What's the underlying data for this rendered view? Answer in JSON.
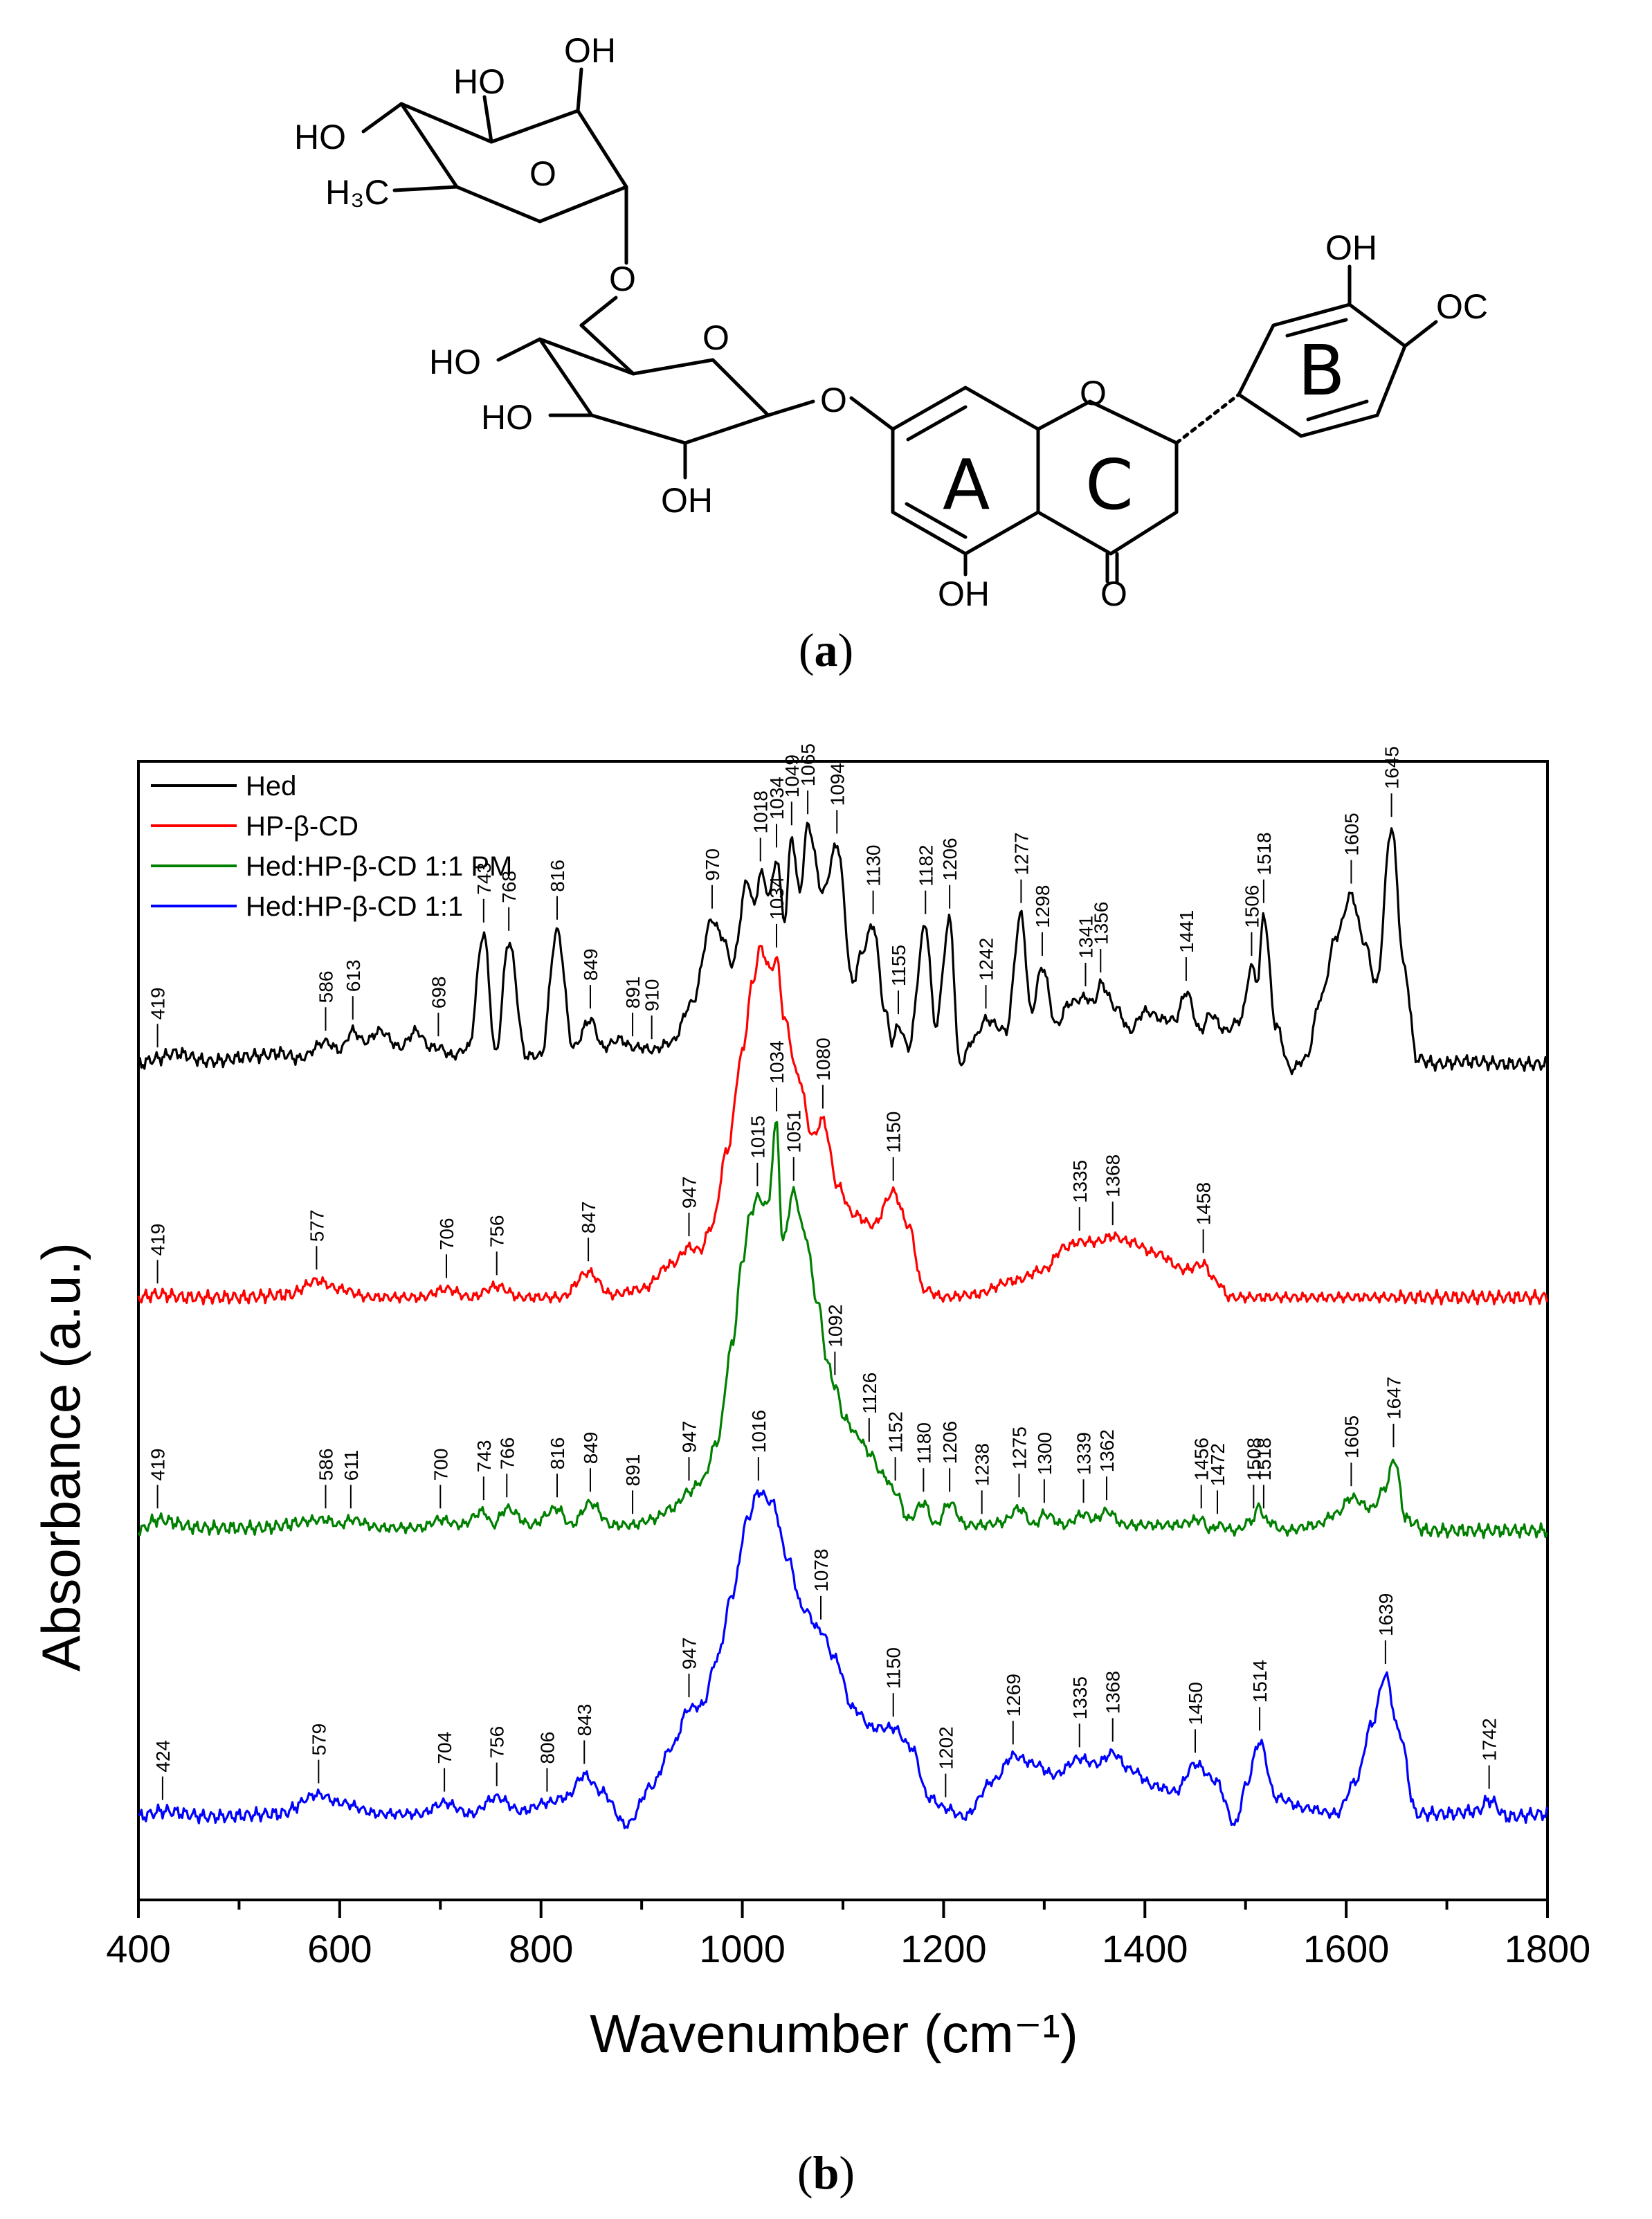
{
  "structure": {
    "atoms": {
      "oh_rha_top": "OH",
      "ho_rha_upper": "HO",
      "ho_rha_left": "HO",
      "ch3": "H₃C",
      "o_rha_ring": "O",
      "o_link": "O",
      "o_glc_ring": "O",
      "ho_glc_c6": "HO",
      "ho_glc_c4": "HO",
      "oh_glc_c2": "OH",
      "o_glycosidic": "O",
      "o_c_ring": "O",
      "oh_5": "OH",
      "o_carbonyl": "O",
      "oh_b3": "OH",
      "oc_b4": "OC"
    },
    "ring_labels": {
      "a": "A",
      "b": "B",
      "c": "C"
    }
  },
  "captions": {
    "a_label": "a",
    "b_label": "b"
  },
  "chart_data": {
    "type": "line",
    "xlabel": "Wavenumber (cm⁻¹)",
    "ylabel": "Absorbance (a.u.)",
    "xlim": [
      400,
      1800
    ],
    "x_ticks": [
      400,
      600,
      800,
      1000,
      1200,
      1400,
      1600,
      1800
    ],
    "legend": {
      "placement": "top-left"
    },
    "series": [
      {
        "name": "Hed",
        "color": "#000000",
        "baseline": 2.76,
        "x": [
          400,
          419,
          436,
          470,
          520,
          540,
          560,
          586,
          600,
          613,
          625,
          640,
          660,
          676,
          690,
          698,
          712,
          728,
          743,
          755,
          768,
          785,
          800,
          816,
          832,
          849,
          862,
          878,
          891,
          900,
          910,
          930,
          950,
          970,
          980,
          990,
          1005,
          1012,
          1018,
          1027,
          1034,
          1042,
          1049,
          1057,
          1065,
          1080,
          1094,
          1110,
          1117,
          1130,
          1142,
          1149,
          1155,
          1165,
          1182,
          1192,
          1206,
          1216,
          1230,
          1242,
          1262,
          1277,
          1287,
          1298,
          1312,
          1325,
          1341,
          1349,
          1356,
          1372,
          1385,
          1400,
          1420,
          1430,
          1441,
          1455,
          1465,
          1480,
          1495,
          1506,
          1512,
          1518,
          1530,
          1545,
          1560,
          1575,
          1590,
          1605,
          1618,
          1630,
          1645,
          1658,
          1670,
          1690,
          1720,
          1760,
          1800
        ],
        "y": [
          2.76,
          2.78,
          2.8,
          2.77,
          2.79,
          2.8,
          2.78,
          2.84,
          2.81,
          2.88,
          2.84,
          2.88,
          2.82,
          2.88,
          2.82,
          2.82,
          2.79,
          2.82,
          3.23,
          2.8,
          3.2,
          2.79,
          2.79,
          3.24,
          2.82,
          2.92,
          2.82,
          2.85,
          2.82,
          2.82,
          2.81,
          2.84,
          2.98,
          3.28,
          3.22,
          3.12,
          3.42,
          3.33,
          3.45,
          3.37,
          3.5,
          3.28,
          3.58,
          3.38,
          3.62,
          3.38,
          3.55,
          3.05,
          3.15,
          3.26,
          2.95,
          2.84,
          2.9,
          2.82,
          3.26,
          2.9,
          3.28,
          2.76,
          2.85,
          2.92,
          2.88,
          3.3,
          2.95,
          3.11,
          2.9,
          2.98,
          3.0,
          2.98,
          3.05,
          2.96,
          2.88,
          2.95,
          2.92,
          2.92,
          3.02,
          2.88,
          2.94,
          2.88,
          2.92,
          3.11,
          3.06,
          3.3,
          2.9,
          2.74,
          2.78,
          3.0,
          3.22,
          3.37,
          3.2,
          3.05,
          3.61,
          3.1,
          2.78,
          2.76,
          2.77,
          2.76,
          2.76
        ]
      },
      {
        "name": "HP-β-CD",
        "color": "#ff0000",
        "baseline": 1.92,
        "x": [
          400,
          419,
          450,
          500,
          550,
          577,
          600,
          630,
          680,
          706,
          730,
          756,
          780,
          820,
          847,
          870,
          900,
          930,
          947,
          958,
          970,
          985,
          1000,
          1010,
          1018,
          1028,
          1034,
          1042,
          1055,
          1070,
          1080,
          1095,
          1110,
          1130,
          1150,
          1165,
          1180,
          1200,
          1230,
          1270,
          1300,
          1320,
          1335,
          1352,
          1368,
          1385,
          1410,
          1440,
          1458,
          1470,
          1485,
          1500,
          1550,
          1600,
          1650,
          1700,
          1800
        ],
        "y": [
          1.92,
          1.93,
          1.92,
          1.92,
          1.93,
          1.98,
          1.95,
          1.92,
          1.92,
          1.95,
          1.92,
          1.96,
          1.92,
          1.92,
          2.01,
          1.93,
          1.95,
          2.04,
          2.1,
          2.09,
          2.18,
          2.45,
          2.8,
          3.05,
          3.18,
          3.1,
          3.14,
          2.92,
          2.72,
          2.5,
          2.56,
          2.32,
          2.22,
          2.18,
          2.3,
          2.18,
          1.95,
          1.92,
          1.93,
          1.98,
          2.02,
          2.1,
          2.12,
          2.12,
          2.14,
          2.12,
          2.08,
          2.02,
          2.04,
          1.98,
          1.92,
          1.92,
          1.92,
          1.92,
          1.92,
          1.92,
          1.92
        ]
      },
      {
        "name": "Hed:HP-β-CD 1:1 PM",
        "color": "#008000",
        "baseline": 1.08,
        "x": [
          400,
          419,
          460,
          520,
          586,
          600,
          611,
          640,
          680,
          700,
          720,
          743,
          752,
          766,
          790,
          816,
          830,
          849,
          870,
          891,
          910,
          930,
          947,
          960,
          975,
          990,
          1000,
          1008,
          1015,
          1025,
          1034,
          1040,
          1051,
          1062,
          1075,
          1085,
          1092,
          1102,
          1115,
          1126,
          1140,
          1152,
          1165,
          1180,
          1192,
          1206,
          1222,
          1238,
          1258,
          1275,
          1290,
          1300,
          1320,
          1339,
          1350,
          1362,
          1380,
          1400,
          1430,
          1456,
          1465,
          1472,
          1490,
          1508,
          1514,
          1518,
          1540,
          1570,
          1590,
          1605,
          1625,
          1640,
          1647,
          1660,
          1680,
          1720,
          1800
        ],
        "y": [
          1.08,
          1.12,
          1.09,
          1.09,
          1.12,
          1.1,
          1.12,
          1.09,
          1.09,
          1.12,
          1.1,
          1.15,
          1.1,
          1.16,
          1.1,
          1.16,
          1.1,
          1.18,
          1.1,
          1.1,
          1.12,
          1.16,
          1.22,
          1.26,
          1.4,
          1.75,
          2.05,
          2.22,
          2.28,
          2.25,
          2.55,
          2.12,
          2.3,
          2.15,
          1.9,
          1.68,
          1.6,
          1.48,
          1.42,
          1.36,
          1.28,
          1.22,
          1.12,
          1.18,
          1.1,
          1.18,
          1.1,
          1.1,
          1.11,
          1.16,
          1.1,
          1.14,
          1.1,
          1.14,
          1.12,
          1.15,
          1.1,
          1.1,
          1.1,
          1.12,
          1.08,
          1.1,
          1.08,
          1.12,
          1.18,
          1.12,
          1.08,
          1.1,
          1.14,
          1.2,
          1.16,
          1.24,
          1.34,
          1.12,
          1.08,
          1.08,
          1.08
        ]
      },
      {
        "name": "Hed:HP-β-CD 1:1",
        "color": "#0000ff",
        "baseline": 0.05,
        "x": [
          400,
          424,
          470,
          540,
          579,
          600,
          640,
          680,
          704,
          730,
          756,
          780,
          806,
          825,
          843,
          860,
          885,
          910,
          930,
          947,
          960,
          975,
          990,
          1005,
          1016,
          1030,
          1045,
          1060,
          1078,
          1092,
          1110,
          1130,
          1150,
          1168,
          1185,
          1202,
          1220,
          1250,
          1269,
          1290,
          1310,
          1335,
          1352,
          1368,
          1385,
          1410,
          1430,
          1450,
          1470,
          1490,
          1500,
          1514,
          1530,
          1560,
          1590,
          1610,
          1625,
          1639,
          1652,
          1670,
          1700,
          1730,
          1742,
          1760,
          1800
        ],
        "y": [
          0.05,
          0.07,
          0.05,
          0.06,
          0.13,
          0.1,
          0.06,
          0.06,
          0.1,
          0.06,
          0.12,
          0.07,
          0.1,
          0.12,
          0.2,
          0.14,
          0.02,
          0.16,
          0.3,
          0.44,
          0.45,
          0.62,
          0.85,
          1.12,
          1.22,
          1.18,
          0.98,
          0.8,
          0.72,
          0.62,
          0.44,
          0.37,
          0.37,
          0.3,
          0.12,
          0.08,
          0.05,
          0.18,
          0.27,
          0.24,
          0.2,
          0.26,
          0.24,
          0.28,
          0.22,
          0.16,
          0.14,
          0.24,
          0.18,
          0.02,
          0.16,
          0.32,
          0.12,
          0.08,
          0.06,
          0.18,
          0.38,
          0.56,
          0.36,
          0.06,
          0.06,
          0.07,
          0.11,
          0.05,
          0.06
        ]
      }
    ],
    "peak_labels": [
      {
        "series": 0,
        "values": [
          419,
          586,
          613,
          698,
          743,
          768,
          816,
          849,
          891,
          910,
          970,
          1018,
          1034,
          1049,
          1065,
          1094,
          1130,
          1155,
          1182,
          1206,
          1242,
          1277,
          1298,
          1341,
          1356,
          1441,
          1506,
          1518,
          1605,
          1645
        ]
      },
      {
        "series": 1,
        "values": [
          419,
          577,
          706,
          756,
          847,
          947,
          1034,
          1080,
          1150,
          1335,
          1368,
          1458
        ]
      },
      {
        "series": 2,
        "values": [
          419,
          586,
          611,
          700,
          743,
          766,
          816,
          849,
          891,
          947,
          1015,
          1034,
          1051,
          1092,
          1126,
          1152,
          1180,
          1206,
          1238,
          1275,
          1300,
          1339,
          1362,
          1456,
          1472,
          1508,
          1518,
          1605,
          1647
        ]
      },
      {
        "series": 3,
        "values": [
          424,
          579,
          704,
          756,
          806,
          843,
          947,
          1016,
          1078,
          1150,
          1202,
          1269,
          1335,
          1368,
          1450,
          1514,
          1639,
          1742
        ]
      }
    ]
  }
}
